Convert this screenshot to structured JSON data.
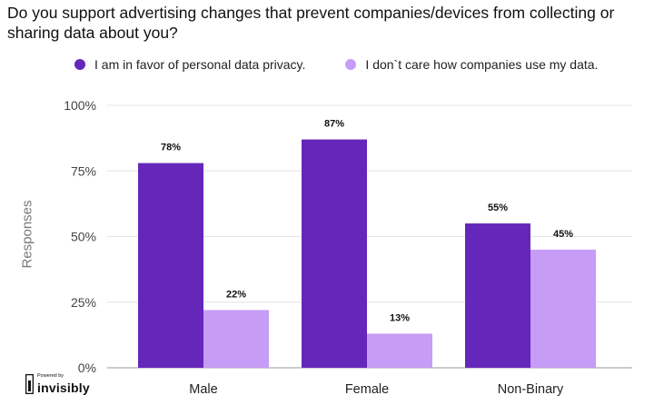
{
  "chart_data": {
    "type": "bar",
    "title": "Do you support advertising changes that prevent companies/devices from collecting or sharing data about you?",
    "ylabel": "Responses",
    "xlabel": "",
    "ylim": [
      0,
      100
    ],
    "yticks": [
      "0%",
      "25%",
      "50%",
      "75%",
      "100%"
    ],
    "ytick_values": [
      0,
      25,
      50,
      75,
      100
    ],
    "categories": [
      "Male",
      "Female",
      "Non-Binary"
    ],
    "grid": true,
    "legend_position": "top",
    "series": [
      {
        "name": "I am in favor of personal data privacy.",
        "values": [
          78,
          87,
          55
        ],
        "labels": [
          "78%",
          "87%",
          "55%"
        ],
        "color": "#6427b9"
      },
      {
        "name": "I don`t care how companies use my data.",
        "values": [
          22,
          13,
          45
        ],
        "labels": [
          "22%",
          "13%",
          "45%"
        ],
        "color": "#c69cf7"
      }
    ]
  },
  "brand": {
    "powered_by": "Powered by",
    "name": "invisibly"
  }
}
